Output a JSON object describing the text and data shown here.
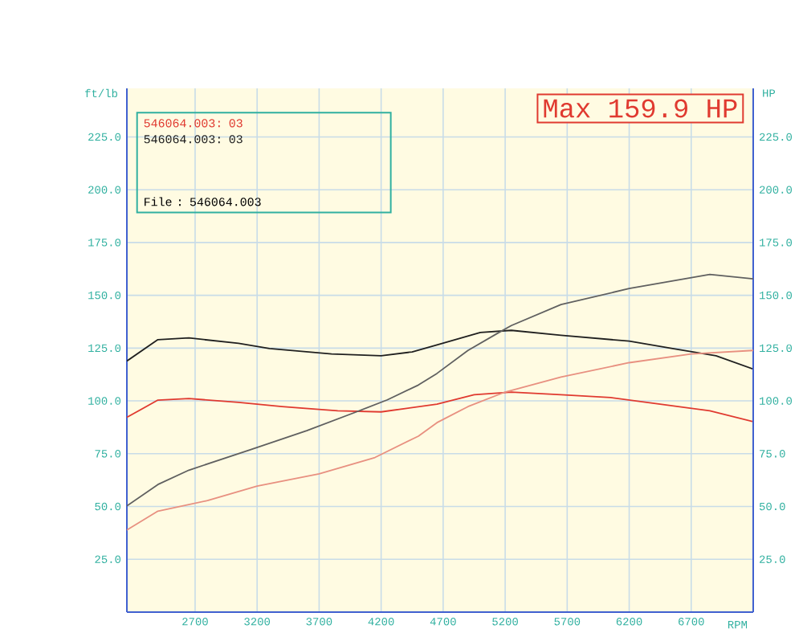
{
  "chart_data": {
    "type": "line",
    "title": "Max 159.9 HP",
    "xlabel": "RPM",
    "ylabel": "ft/lb",
    "y2label": "HP",
    "annotations": [
      "File      : 546064.003"
    ],
    "xlim": [
      2150,
      7200
    ],
    "xticks": [
      2700,
      3200,
      3700,
      4200,
      4700,
      5200,
      5700,
      6200,
      6700
    ],
    "ylim": [
      0,
      248
    ],
    "yticks": [
      {
        "value": 25,
        "label": "25.0"
      },
      {
        "value": 50,
        "label": "50.0"
      },
      {
        "value": 75,
        "label": "75.0"
      },
      {
        "value": 100,
        "label": "100.0"
      },
      {
        "value": 125,
        "label": "125.0"
      },
      {
        "value": 150,
        "label": "150.0"
      },
      {
        "value": 175,
        "label": "175.0"
      },
      {
        "value": 200,
        "label": "200.0"
      },
      {
        "value": 225,
        "label": "225.0"
      }
    ],
    "y2lim": [
      0,
      248
    ],
    "y2ticks": [
      {
        "value": 25,
        "label": "25.0"
      },
      {
        "value": 50,
        "label": "50.0"
      },
      {
        "value": 75,
        "label": "75.0"
      },
      {
        "value": 100,
        "label": "100.0"
      },
      {
        "value": 125,
        "label": "125.0"
      },
      {
        "value": 150,
        "label": "150.0"
      },
      {
        "value": 175,
        "label": "175.0"
      },
      {
        "value": 200,
        "label": "200.0"
      },
      {
        "value": 225,
        "label": "225.0"
      }
    ],
    "grid": true,
    "legend": "top left",
    "marker": "none",
    "line_style": "solid",
    "series": [
      {
        "name": "546064.003: 03",
        "color": "#e03a30",
        "x": [
          2150,
          2400,
          2650,
          3050,
          3400,
          3850,
          4200,
          4650,
          4950,
          5250,
          5650,
          6050,
          6450,
          6850,
          7200
        ],
        "values": [
          92.2,
          100.4,
          101.1,
          99.3,
          97.3,
          95.3,
          94.8,
          98.5,
          102.9,
          104.2,
          102.9,
          101.6,
          98.5,
          95.3,
          90.2
        ]
      },
      {
        "name": "546064.003: 03",
        "color": "#202020",
        "x": [
          2150,
          2400,
          2650,
          3050,
          3300,
          3800,
          4200,
          4450,
          4650,
          5000,
          5250,
          5650,
          6200,
          6550,
          6900,
          7200
        ],
        "values": [
          118.9,
          129.0,
          129.8,
          127.3,
          124.8,
          122.2,
          121.4,
          123.2,
          126.5,
          132.4,
          133.4,
          131.1,
          128.3,
          124.8,
          121.4,
          115.1
        ]
      },
      {
        "color": "#e89080",
        "axis": "y2",
        "x": [
          2150,
          2400,
          2800,
          3200,
          3700,
          4150,
          4500,
          4650,
          4900,
          5200,
          5650,
          6200,
          6700,
          7200
        ],
        "values": [
          38.9,
          47.8,
          52.8,
          59.7,
          65.5,
          73.2,
          83.3,
          89.7,
          97.3,
          104.2,
          111.3,
          118.1,
          122.2,
          123.9
        ]
      },
      {
        "color": "#606060",
        "axis": "y2",
        "x": [
          2150,
          2400,
          2650,
          3150,
          3600,
          4000,
          4250,
          4500,
          4650,
          4900,
          5150,
          5250,
          5650,
          6200,
          6850,
          7200
        ],
        "values": [
          50.3,
          60.4,
          67.2,
          77.0,
          85.9,
          94.8,
          100.5,
          107.5,
          113.0,
          123.9,
          132.4,
          135.7,
          145.6,
          153.2,
          159.9,
          157.8
        ]
      }
    ]
  }
}
